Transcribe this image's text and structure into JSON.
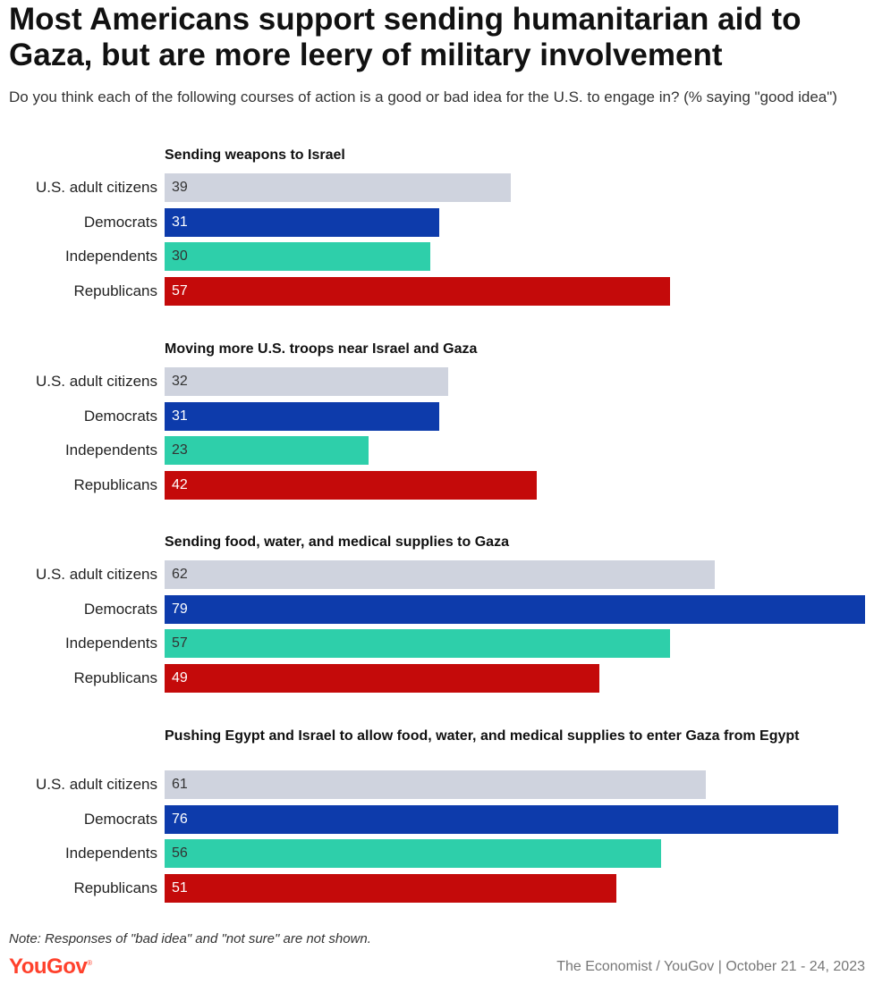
{
  "header": {
    "title": "Most Americans support sending humanitarian aid to Gaza, but are more leery of military involvement",
    "subtitle": "Do you think each of the following courses of action is a good or bad idea for the U.S. to engage in? (% saying \"good idea\")"
  },
  "colors": {
    "U.S. adult citizens": "#cfd3de",
    "Democrats": "#0d3bab",
    "Independents": "#2ecfaa",
    "Republicans": "#c40a0a"
  },
  "label_colors": {
    "U.S. adult citizens": "#333333",
    "Democrats": "#ffffff",
    "Independents": "#333333",
    "Republicans": "#ffffff"
  },
  "chart_data": {
    "type": "bar",
    "orientation": "horizontal",
    "xlim": [
      0,
      79
    ],
    "grid": false,
    "panels": [
      {
        "title": "Sending weapons to Israel",
        "categories": [
          "U.S. adult citizens",
          "Democrats",
          "Independents",
          "Republicans"
        ],
        "values": [
          39,
          31,
          30,
          57
        ]
      },
      {
        "title": "Moving more U.S. troops near Israel and Gaza",
        "categories": [
          "U.S. adult citizens",
          "Democrats",
          "Independents",
          "Republicans"
        ],
        "values": [
          32,
          31,
          23,
          42
        ]
      },
      {
        "title": "Sending food, water, and medical supplies to Gaza",
        "categories": [
          "U.S. adult citizens",
          "Democrats",
          "Independents",
          "Republicans"
        ],
        "values": [
          62,
          79,
          57,
          49
        ]
      },
      {
        "title": "Pushing Egypt and Israel to allow food, water, and medical supplies to enter Gaza from Egypt",
        "categories": [
          "U.S. adult citizens",
          "Democrats",
          "Independents",
          "Republicans"
        ],
        "values": [
          61,
          76,
          56,
          51
        ]
      }
    ]
  },
  "footer": {
    "note": "Note: Responses of \"bad idea\" and \"not sure\" are not shown.",
    "logo": "YouGov",
    "source": "The Economist / YouGov | October 21 - 24, 2023"
  }
}
